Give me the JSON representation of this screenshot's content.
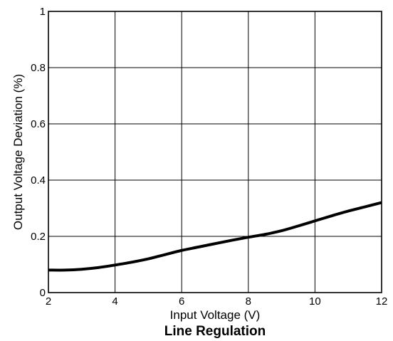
{
  "chart_data": {
    "type": "line",
    "title": "Line Regulation",
    "xlabel": "Input Voltage (V)",
    "ylabel": "Output Voltage Deviation (%)",
    "xlim": [
      2,
      12
    ],
    "ylim": [
      0,
      1
    ],
    "xticks": [
      "2",
      "4",
      "6",
      "8",
      "10",
      "12"
    ],
    "yticks": [
      "0",
      "0.2",
      "0.4",
      "0.6",
      "0.8",
      "1"
    ],
    "grid": true,
    "series": [
      {
        "x": [
          2,
          2.5,
          3,
          3.5,
          4,
          4.5,
          5,
          5.5,
          6,
          6.5,
          7,
          7.5,
          8,
          8.5,
          9,
          9.5,
          10,
          10.5,
          11,
          11.5,
          12
        ],
        "y": [
          0.08,
          0.08,
          0.083,
          0.089,
          0.098,
          0.108,
          0.12,
          0.135,
          0.15,
          0.162,
          0.174,
          0.186,
          0.197,
          0.207,
          0.22,
          0.237,
          0.255,
          0.273,
          0.29,
          0.305,
          0.32
        ],
        "color": "#000000"
      }
    ],
    "colors": {
      "line": "#000000",
      "grid": "#000000",
      "background": "#ffffff"
    }
  }
}
